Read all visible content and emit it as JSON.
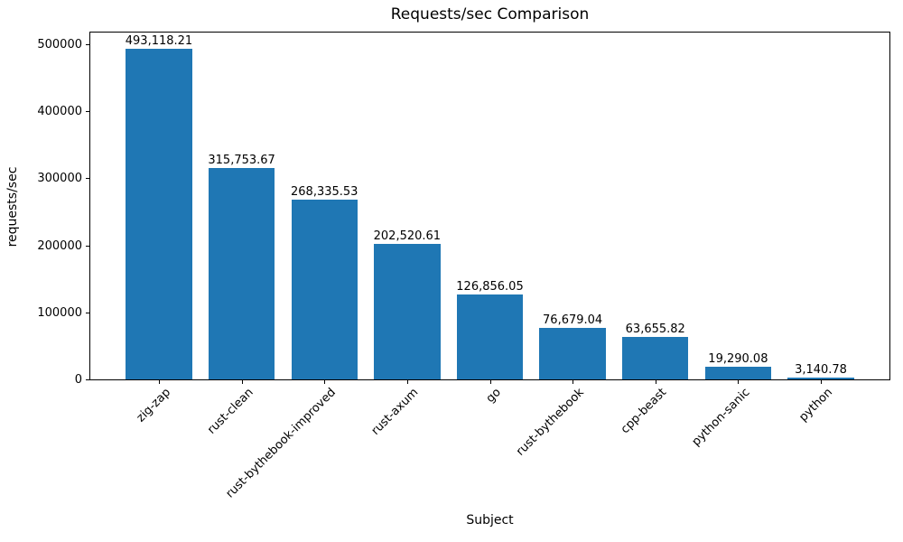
{
  "chart_data": {
    "type": "bar",
    "title": "Requests/sec Comparison",
    "xlabel": "Subject",
    "ylabel": "requests/sec",
    "categories": [
      "zig-zap",
      "rust-clean",
      "rust-bythebook-improved",
      "rust-axum",
      "go",
      "rust-bythebook",
      "cpp-beast",
      "python-sanic",
      "python"
    ],
    "values": [
      493118.21,
      315753.67,
      268335.53,
      202520.61,
      126856.05,
      76679.04,
      63655.82,
      19290.08,
      3140.78
    ],
    "value_labels": [
      "493,118.21",
      "315,753.67",
      "268,335.53",
      "202,520.61",
      "126,856.05",
      "76,679.04",
      "63,655.82",
      "19,290.08",
      "3,140.78"
    ],
    "yticks": [
      0,
      100000,
      200000,
      300000,
      400000,
      500000
    ],
    "ytick_labels": [
      "0",
      "100000",
      "200000",
      "300000",
      "400000",
      "500000"
    ],
    "ylim": [
      0,
      520000
    ],
    "bar_color": "#1f77b4",
    "text_color": "#000000",
    "grid": false,
    "legend": null
  }
}
